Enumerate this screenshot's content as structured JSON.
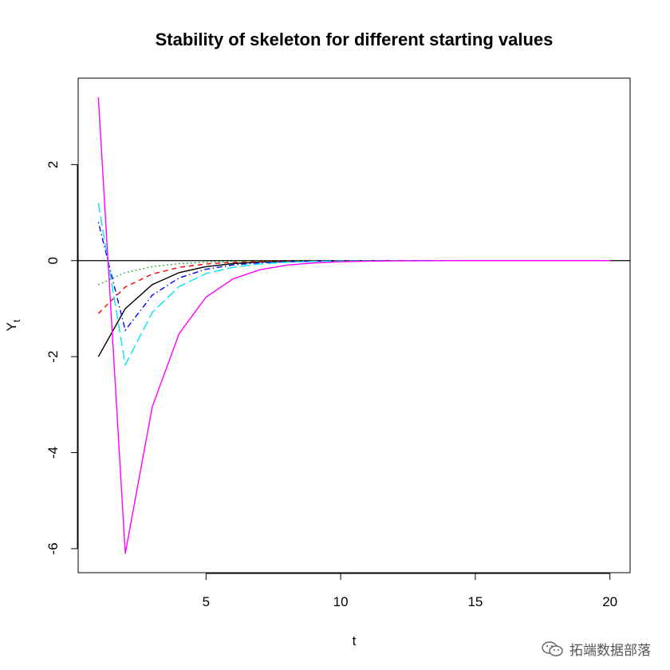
{
  "chart_data": {
    "type": "line",
    "title": "Stability of skeleton for different starting values",
    "xlabel": "t",
    "ylabel": "Y",
    "ylabel_subscript": "t",
    "xlim": [
      0.25,
      20.75
    ],
    "ylim": [
      -6.5,
      3.8
    ],
    "xticks": [
      5,
      10,
      15,
      20
    ],
    "yticks": [
      -6,
      -4,
      -2,
      0,
      2
    ],
    "hline": 0,
    "x": [
      1,
      2,
      3,
      4,
      5,
      6,
      7,
      8,
      9,
      10,
      11,
      12,
      13,
      14,
      15,
      16,
      17,
      18,
      19,
      20
    ],
    "series": [
      {
        "color": "#000000",
        "dash": "solid",
        "values": [
          -2.0,
          -1.0,
          -0.5,
          -0.25,
          -0.125,
          -0.0625,
          -0.031,
          -0.016,
          -0.008,
          -0.004,
          -0.002,
          -0.001,
          0,
          0,
          0,
          0,
          0,
          0,
          0,
          0
        ]
      },
      {
        "color": "#ff0000",
        "dash": "dashed",
        "values": [
          -1.1,
          -0.55,
          -0.28,
          -0.14,
          -0.07,
          -0.035,
          -0.017,
          -0.009,
          -0.004,
          -0.002,
          -0.001,
          0,
          0,
          0,
          0,
          0,
          0,
          0,
          0,
          0
        ]
      },
      {
        "color": "#00a000",
        "dash": "dotted",
        "values": [
          -0.5,
          -0.25,
          -0.125,
          -0.063,
          -0.031,
          -0.016,
          -0.008,
          -0.004,
          -0.002,
          -0.001,
          0,
          0,
          0,
          0,
          0,
          0,
          0,
          0,
          0,
          0
        ]
      },
      {
        "color": "#0000ff",
        "dash": "dotdash",
        "values": [
          0.8,
          -1.45,
          -0.72,
          -0.36,
          -0.18,
          -0.09,
          -0.045,
          -0.023,
          -0.011,
          -0.006,
          -0.003,
          -0.001,
          0,
          0,
          0,
          0,
          0,
          0,
          0,
          0
        ]
      },
      {
        "color": "#00e5ee",
        "dash": "longdash",
        "values": [
          1.2,
          -2.17,
          -1.08,
          -0.54,
          -0.27,
          -0.14,
          -0.07,
          -0.034,
          -0.017,
          -0.008,
          -0.004,
          -0.002,
          -0.001,
          0,
          0,
          0,
          0,
          0,
          0,
          0
        ]
      },
      {
        "color": "#ff00ff",
        "dash": "solid",
        "values": [
          3.4,
          -6.1,
          -3.05,
          -1.52,
          -0.76,
          -0.38,
          -0.19,
          -0.095,
          -0.048,
          -0.024,
          -0.012,
          -0.006,
          -0.003,
          -0.001,
          0,
          0,
          0,
          0,
          0,
          0
        ]
      }
    ]
  },
  "watermark": {
    "text": "拓端数据部落",
    "icon": "wechat-icon"
  }
}
